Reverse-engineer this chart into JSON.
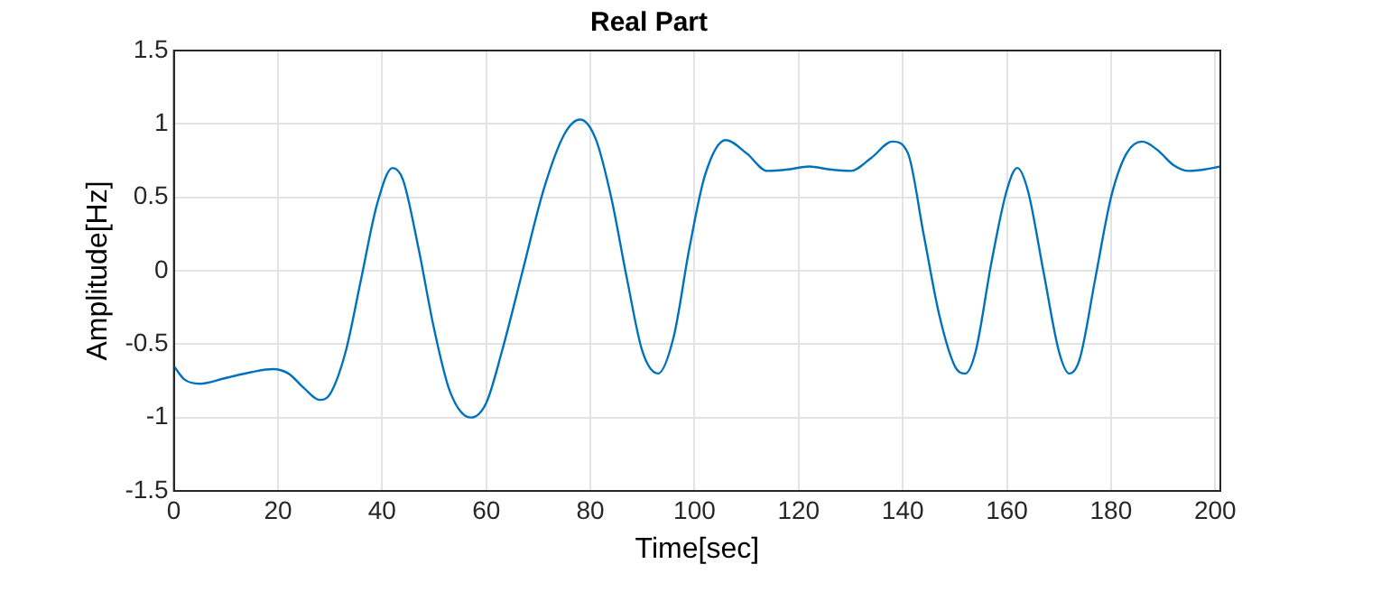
{
  "chart_data": {
    "type": "line",
    "title": "Real Part",
    "xlabel": "Time[sec]",
    "ylabel": "Amplitude[Hz]",
    "x": [
      0,
      2,
      5,
      10,
      15,
      19,
      22,
      25,
      28,
      30,
      33,
      36,
      39,
      42,
      44,
      47,
      50,
      53,
      57,
      60,
      63,
      67,
      71,
      75,
      78,
      81,
      84,
      87,
      90,
      93,
      96,
      99,
      102,
      106,
      110,
      114,
      118,
      122,
      126,
      130,
      134,
      138,
      141,
      144,
      147,
      150,
      152,
      154,
      157,
      160,
      162,
      164,
      167,
      170,
      172,
      174,
      177,
      180,
      183,
      186,
      189,
      192,
      195,
      198,
      201
    ],
    "series": [
      {
        "color": "#0072bd",
        "values": [
          -0.65,
          -0.74,
          -0.77,
          -0.73,
          -0.69,
          -0.67,
          -0.7,
          -0.8,
          -0.88,
          -0.84,
          -0.55,
          -0.05,
          0.45,
          0.7,
          0.62,
          0.15,
          -0.4,
          -0.82,
          -1.0,
          -0.9,
          -0.55,
          0.0,
          0.55,
          0.93,
          1.03,
          0.9,
          0.5,
          -0.05,
          -0.55,
          -0.7,
          -0.45,
          0.15,
          0.65,
          0.89,
          0.8,
          0.68,
          0.69,
          0.71,
          0.69,
          0.68,
          0.77,
          0.88,
          0.8,
          0.25,
          -0.3,
          -0.65,
          -0.7,
          -0.55,
          0.05,
          0.55,
          0.7,
          0.55,
          0.0,
          -0.55,
          -0.7,
          -0.6,
          -0.05,
          0.5,
          0.8,
          0.88,
          0.82,
          0.72,
          0.68,
          0.69,
          0.71
        ]
      }
    ],
    "xlim": [
      0,
      201
    ],
    "xticks": [
      0,
      20,
      40,
      60,
      80,
      100,
      120,
      140,
      160,
      180,
      200
    ],
    "ylim": [
      -1.5,
      1.5
    ],
    "yticks": [
      -1.5,
      -1,
      -0.5,
      0,
      0.5,
      1,
      1.5
    ],
    "grid": true,
    "legend": false,
    "marker": "none",
    "line_style": "solid"
  }
}
